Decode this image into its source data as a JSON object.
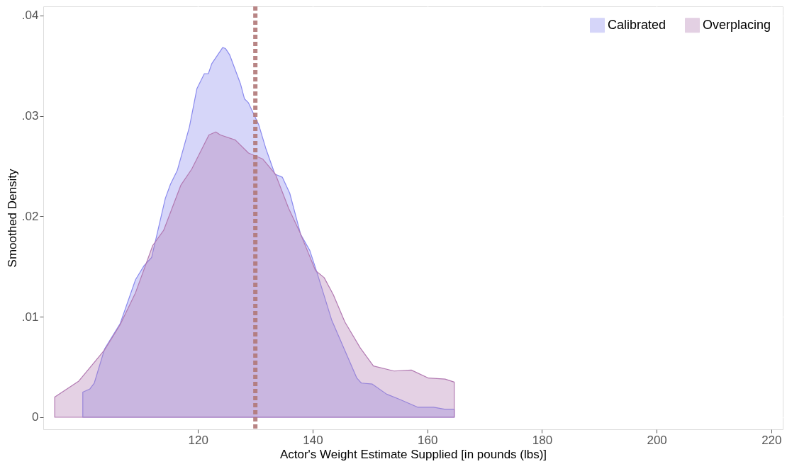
{
  "chart_data": {
    "type": "area",
    "xlabel": "Actor's Weight Estimate Supplied [in pounds (lbs)]",
    "ylabel": "Smoothed Density",
    "xlim": [
      93,
      222
    ],
    "xticks": [
      120,
      140,
      160,
      180,
      200,
      220
    ],
    "ylim": [
      -0.0012,
      0.0409
    ],
    "yticks": [
      {
        "value": 0,
        "label": "0"
      },
      {
        "value": 0.01,
        "label": ".01"
      },
      {
        "value": 0.02,
        "label": ".02"
      },
      {
        "value": 0.03,
        "label": ".03"
      },
      {
        "value": 0.04,
        "label": ".04"
      }
    ],
    "grid": true,
    "legend": "top right",
    "ref_lines": [
      {
        "axis": "x",
        "value": 130,
        "color": "#b07878",
        "line_style": "dotted"
      }
    ],
    "series": [
      {
        "name": "Calibrated",
        "color": "#8a8aee",
        "x": [
          99.9,
          101.1,
          101.9,
          103.7,
          106.4,
          109.1,
          110.6,
          111.9,
          114.3,
          115.2,
          116.4,
          118.5,
          119.8,
          121.1,
          121.8,
          122.4,
          124.3,
          124.8,
          125.5,
          127.4,
          128.1,
          128.8,
          130.6,
          131.8,
          133.4,
          134.7,
          136.0,
          137.9,
          139.5,
          140.7,
          143.3,
          145.8,
          147.7,
          148.5,
          150.4,
          152.9,
          155.1,
          158.3,
          161.1,
          163.0,
          164.7
        ],
        "values": [
          0.0025,
          0.0028,
          0.0034,
          0.0068,
          0.0093,
          0.0137,
          0.0151,
          0.0159,
          0.0218,
          0.0232,
          0.0246,
          0.0289,
          0.0327,
          0.0342,
          0.0342,
          0.0352,
          0.0368,
          0.0367,
          0.0361,
          0.0332,
          0.0317,
          0.0313,
          0.0291,
          0.0268,
          0.0242,
          0.0239,
          0.0223,
          0.0182,
          0.0166,
          0.0145,
          0.0097,
          0.0064,
          0.0039,
          0.0034,
          0.0033,
          0.0023,
          0.0018,
          0.001,
          0.001,
          0.0008,
          0.0008
        ]
      },
      {
        "name": "Overplacing",
        "color": "#b27ab2",
        "x": [
          95.0,
          99.2,
          103.7,
          106.4,
          109.1,
          112.1,
          114.0,
          117.0,
          118.9,
          121.9,
          123.1,
          123.9,
          126.5,
          128.8,
          131.3,
          133.5,
          135.8,
          137.7,
          140.5,
          142.0,
          143.6,
          145.6,
          148.3,
          150.6,
          154.2,
          157.2,
          160.2,
          163.1,
          164.7
        ],
        "values": [
          0.002,
          0.0036,
          0.0067,
          0.0092,
          0.0124,
          0.0171,
          0.0186,
          0.0231,
          0.0247,
          0.0281,
          0.0284,
          0.0281,
          0.0276,
          0.0263,
          0.0257,
          0.0242,
          0.0208,
          0.0185,
          0.0146,
          0.0139,
          0.0122,
          0.0095,
          0.0069,
          0.0051,
          0.0046,
          0.0047,
          0.0039,
          0.0038,
          0.0035
        ]
      }
    ]
  }
}
